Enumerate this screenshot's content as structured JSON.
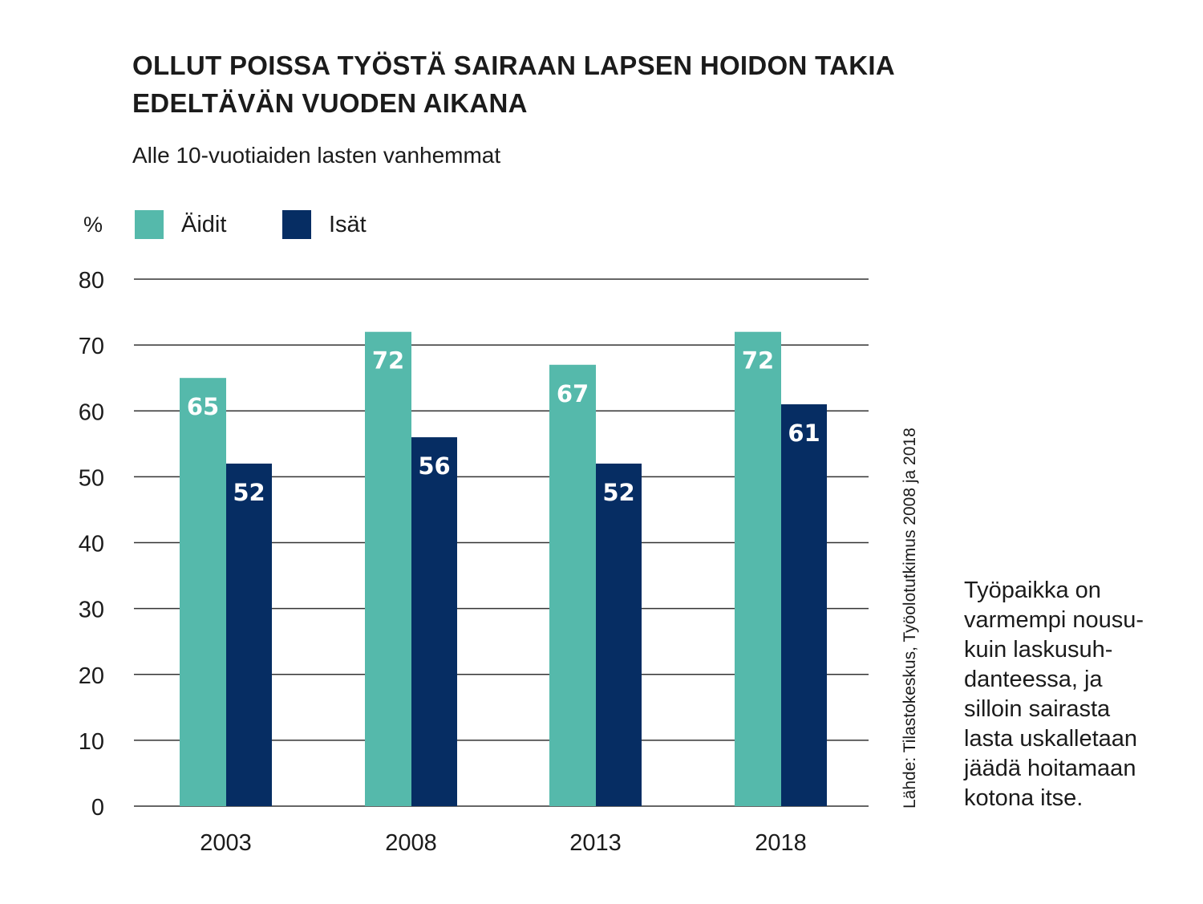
{
  "title_lines": [
    "OLLUT POISSA TYÖSTÄ SAIRAAN LAPSEN HOIDON TAKIA",
    "EDELTÄVÄN VUODEN AIKANA"
  ],
  "subtitle": "Alle 10-vuotiaiden lasten vanhemmat",
  "source": "Lähde: Tilastokeskus, Työolotutkimus 2008 ja 2018",
  "note_lines": [
    "Työpaikka on",
    "varmempi nousu-",
    "kuin laskusuh-",
    "danteessa, ja",
    "silloin sairasta",
    "lasta uskalletaan",
    "jäädä hoitamaan",
    "kotona itse."
  ],
  "chart_data": {
    "type": "bar",
    "title": "OLLUT POISSA TYÖSTÄ SAIRAAN LAPSEN HOIDON TAKIA EDELTÄVÄN VUODEN AIKANA",
    "subtitle": "Alle 10-vuotiaiden lasten vanhemmat",
    "ylabel": "%",
    "categories": [
      "2003",
      "2008",
      "2013",
      "2018"
    ],
    "series": [
      {
        "name": "Äidit",
        "values": [
          65,
          72,
          67,
          72
        ],
        "color": "#55b9ab"
      },
      {
        "name": "Isät",
        "values": [
          52,
          56,
          52,
          61
        ],
        "color": "#062d63"
      }
    ],
    "ylim": [
      0,
      80
    ],
    "yticks": [
      "0",
      "10",
      "20",
      "30",
      "40",
      "50",
      "60",
      "70",
      "80"
    ],
    "grid": true,
    "legend": "top-left",
    "data_labels": true
  }
}
